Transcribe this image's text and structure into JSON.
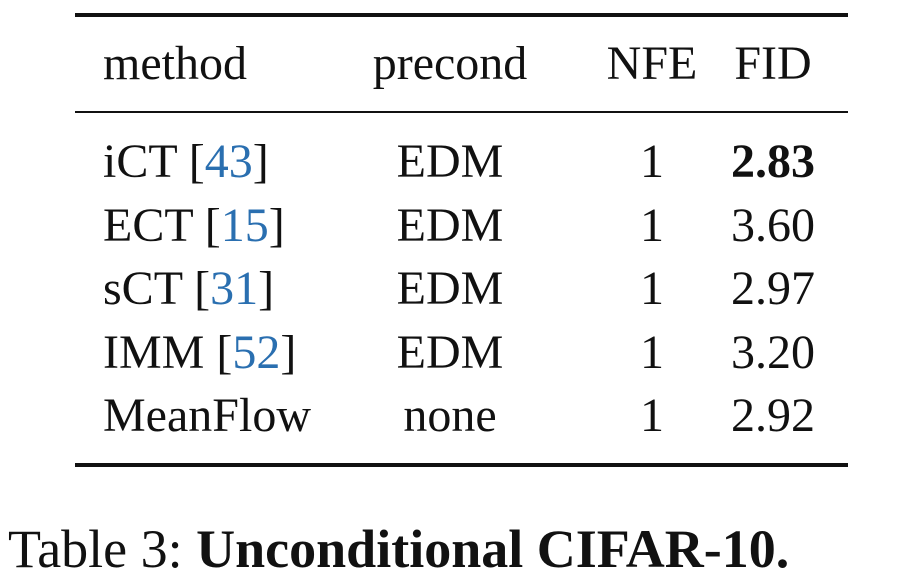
{
  "table": {
    "header": [
      "method",
      "precond",
      "NFE",
      "FID"
    ],
    "rows": [
      {
        "method": [
          "iCT [",
          "43",
          "]"
        ],
        "precond": "EDM",
        "nfe": "1",
        "fid": "2.83"
      },
      {
        "method": [
          "ECT [",
          "15",
          "]"
        ],
        "precond": "EDM",
        "nfe": "1",
        "fid": "3.60"
      },
      {
        "method": [
          "sCT [",
          "31",
          "]"
        ],
        "precond": "EDM",
        "nfe": "1",
        "fid": "2.97"
      },
      {
        "method": [
          "IMM [",
          "52",
          "]"
        ],
        "precond": "EDM",
        "nfe": "1",
        "fid": "3.20"
      },
      {
        "method": [
          "MeanFlow"
        ],
        "precond": "none",
        "nfe": "1",
        "fid": "2.92"
      }
    ]
  },
  "caption": {
    "label": "Table 3:",
    "text": "Unconditional CIFAR-10."
  }
}
